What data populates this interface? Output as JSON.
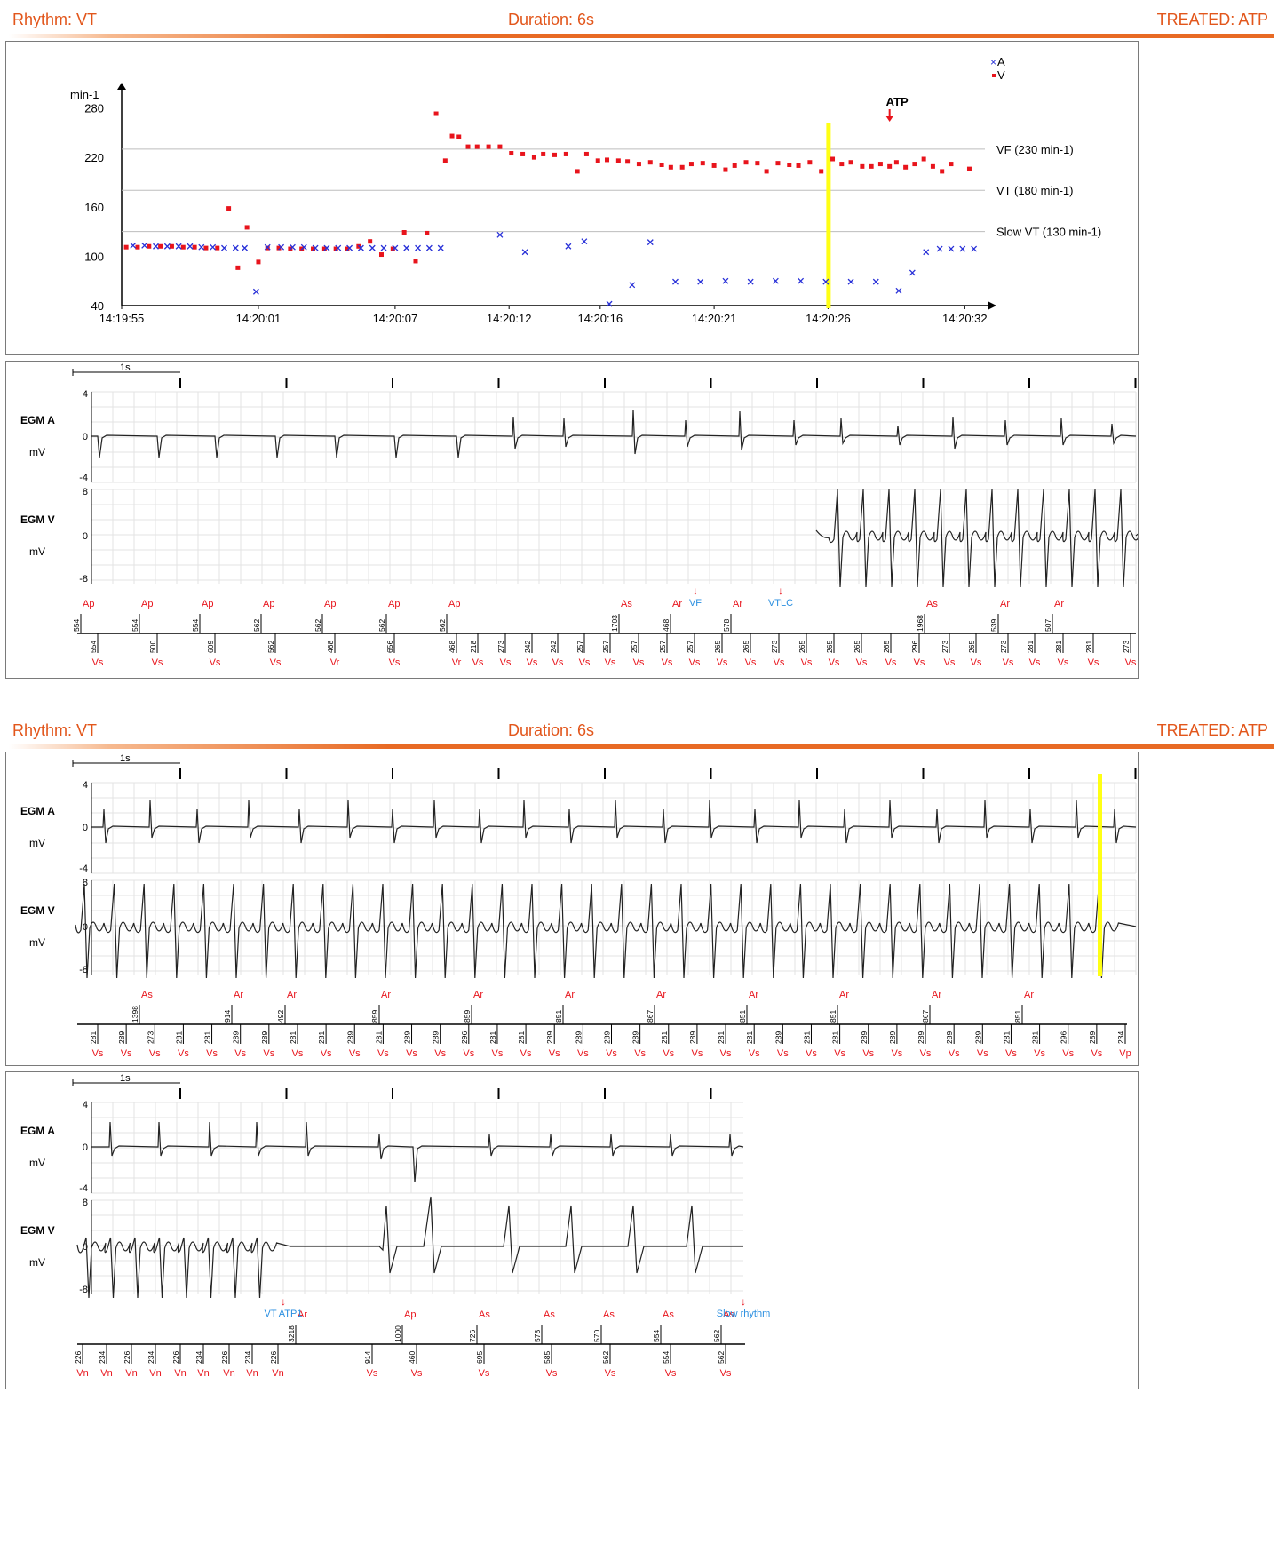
{
  "headers": [
    {
      "rhythm": "Rhythm: VT",
      "duration": "Duration: 6s",
      "treated": "TREATED: ATP"
    },
    {
      "rhythm": "Rhythm: VT",
      "duration": "Duration: 6s",
      "treated": "TREATED: ATP"
    }
  ],
  "colors": {
    "header": "#e2561b",
    "v_marker": "#e8141c",
    "a_marker": "#2830d8",
    "yellow": "#ffff14",
    "annotation": "#2b8fe0"
  },
  "chart_data": [
    {
      "type": "scatter",
      "title": "",
      "ylabel": "min-1",
      "ylim": [
        40,
        300
      ],
      "yticks": [
        40,
        100,
        160,
        220,
        280
      ],
      "xlim": [
        "14:19:55",
        "14:20:33"
      ],
      "xticks": [
        "14:19:55",
        "14:20:01",
        "14:20:07",
        "14:20:12",
        "14:20:16",
        "14:20:21",
        "14:20:26",
        "14:20:32"
      ],
      "legend": {
        "position": "top-right",
        "entries": [
          "A",
          "V"
        ]
      },
      "thresholds": [
        {
          "label": "VF (230 min-1)",
          "value": 230
        },
        {
          "label": "VT (180 min-1)",
          "value": 180
        },
        {
          "label": "Slow VT (130 min-1)",
          "value": 130
        }
      ],
      "marker_annotation": {
        "label": "ATP",
        "time": "14:20:28.7"
      },
      "highlight_time": "14:20:26",
      "series": [
        {
          "name": "A",
          "marker": "x",
          "x": [
            "14:19:55.5",
            "14:19:56.0",
            "14:19:56.5",
            "14:19:57.0",
            "14:19:57.5",
            "14:19:58.0",
            "14:19:58.5",
            "14:19:59.0",
            "14:19:59.5",
            "14:20:00.0",
            "14:20:00.4",
            "14:20:00.9",
            "14:20:01.4",
            "14:20:02.0",
            "14:20:02.5",
            "14:20:03.0",
            "14:20:03.5",
            "14:20:04.0",
            "14:20:04.5",
            "14:20:05.0",
            "14:20:05.5",
            "14:20:06.0",
            "14:20:06.5",
            "14:20:07.0",
            "14:20:07.5",
            "14:20:08.0",
            "14:20:08.5",
            "14:20:09.0",
            "14:20:11.6",
            "14:20:12.7",
            "14:20:14.6",
            "14:20:15.3",
            "14:20:16.4",
            "14:20:17.4",
            "14:20:18.2",
            "14:20:19.3",
            "14:20:20.4",
            "14:20:21.5",
            "14:20:22.6",
            "14:20:23.7",
            "14:20:24.8",
            "14:20:25.9",
            "14:20:27.0",
            "14:20:28.1",
            "14:20:29.1",
            "14:20:29.7",
            "14:20:30.3",
            "14:20:30.9",
            "14:20:31.4",
            "14:20:31.9",
            "14:20:32.4"
          ],
          "y": [
            113,
            113,
            112,
            112,
            112,
            112,
            111,
            111,
            110,
            110,
            110,
            57,
            111,
            111,
            111,
            111,
            110,
            110,
            110,
            110,
            110,
            110,
            110,
            110,
            110,
            110,
            110,
            110,
            126,
            105,
            112,
            118,
            42,
            65,
            117,
            69,
            69,
            70,
            69,
            70,
            70,
            69,
            69,
            69,
            58,
            80,
            105,
            109,
            109,
            109,
            109
          ]
        },
        {
          "name": "V",
          "marker": "square",
          "x": [
            "14:19:55.2",
            "14:19:55.7",
            "14:19:56.2",
            "14:19:56.7",
            "14:19:57.2",
            "14:19:57.7",
            "14:19:58.2",
            "14:19:58.7",
            "14:19:59.2",
            "14:19:59.7",
            "14:20:00.1",
            "14:20:00.5",
            "14:20:01.0",
            "14:20:01.4",
            "14:20:01.9",
            "14:20:02.4",
            "14:20:02.9",
            "14:20:03.4",
            "14:20:03.9",
            "14:20:04.4",
            "14:20:04.9",
            "14:20:05.4",
            "14:20:05.9",
            "14:20:06.4",
            "14:20:06.9",
            "14:20:07.4",
            "14:20:07.9",
            "14:20:08.4",
            "14:20:08.8",
            "14:20:09.2",
            "14:20:09.5",
            "14:20:09.8",
            "14:20:10.2",
            "14:20:10.6",
            "14:20:11.1",
            "14:20:11.6",
            "14:20:12.1",
            "14:20:12.6",
            "14:20:13.1",
            "14:20:13.5",
            "14:20:14.0",
            "14:20:14.5",
            "14:20:15.0",
            "14:20:15.4",
            "14:20:15.9",
            "14:20:16.3",
            "14:20:16.8",
            "14:20:17.2",
            "14:20:17.7",
            "14:20:18.2",
            "14:20:18.7",
            "14:20:19.1",
            "14:20:19.6",
            "14:20:20.0",
            "14:20:20.5",
            "14:20:21.0",
            "14:20:21.5",
            "14:20:21.9",
            "14:20:22.4",
            "14:20:22.9",
            "14:20:23.3",
            "14:20:23.8",
            "14:20:24.3",
            "14:20:24.7",
            "14:20:25.2",
            "14:20:25.7",
            "14:20:26.2",
            "14:20:26.6",
            "14:20:27.0",
            "14:20:27.5",
            "14:20:27.9",
            "14:20:28.3",
            "14:20:28.7",
            "14:20:29.0",
            "14:20:29.4",
            "14:20:29.8",
            "14:20:30.2",
            "14:20:30.6",
            "14:20:31.0",
            "14:20:31.4",
            "14:20:32.2"
          ],
          "y": [
            111,
            111,
            112,
            112,
            112,
            111,
            111,
            110,
            110,
            158,
            86,
            135,
            93,
            110,
            110,
            109,
            109,
            109,
            109,
            109,
            109,
            112,
            118,
            102,
            109,
            129,
            94,
            128,
            273,
            216,
            246,
            245,
            233,
            233,
            233,
            233,
            225,
            224,
            220,
            224,
            223,
            224,
            203,
            224,
            216,
            217,
            216,
            215,
            212,
            214,
            211,
            208,
            208,
            212,
            213,
            210,
            205,
            210,
            214,
            213,
            203,
            213,
            211,
            210,
            214,
            203,
            218,
            212,
            214,
            209,
            209,
            212,
            209,
            214,
            208,
            212,
            218,
            209,
            203,
            212,
            206
          ]
        }
      ]
    },
    {
      "type": "line",
      "title": "",
      "scale_label": "1s",
      "tracks": [
        {
          "name": "EGM A",
          "unit": "mV",
          "ticks": [
            "4",
            "0",
            "-4"
          ],
          "ylim": [
            -5,
            5
          ]
        },
        {
          "name": "EGM V",
          "unit": "mV",
          "ticks": [
            "8",
            "0",
            "-8"
          ],
          "ylim": [
            -9,
            9
          ]
        }
      ],
      "annotations": [
        {
          "label": "VF"
        },
        {
          "label": "VTLC"
        }
      ],
      "upper_markers": [
        {
          "label": "Ap",
          "interval": "554"
        },
        {
          "label": "Ap",
          "interval": "554"
        },
        {
          "label": "Ap",
          "interval": "554"
        },
        {
          "label": "Ap",
          "interval": "562"
        },
        {
          "label": "Ap",
          "interval": "562"
        },
        {
          "label": "Ap",
          "interval": "562"
        },
        {
          "label": "Ap",
          "interval": "562"
        },
        {
          "label": "As",
          "interval": "1703"
        },
        {
          "label": "Ar",
          "interval": "468"
        },
        {
          "label": "Ar",
          "interval": "578"
        },
        {
          "label": "As",
          "interval": "1968"
        },
        {
          "label": "Ar",
          "interval": "539"
        },
        {
          "label": "Ar",
          "interval": "507"
        }
      ],
      "lower_markers": [
        {
          "label": "Vs",
          "interval": "554"
        },
        {
          "label": "Vs",
          "interval": "500"
        },
        {
          "label": "Vs",
          "interval": "609"
        },
        {
          "label": "Vs",
          "interval": "562"
        },
        {
          "label": "Vr",
          "interval": "468"
        },
        {
          "label": "Vs",
          "interval": "656"
        },
        {
          "label": "Vr",
          "interval": "468"
        },
        {
          "label": "Vs",
          "interval": "218"
        },
        {
          "label": "Vs",
          "interval": "273"
        },
        {
          "label": "Vs",
          "interval": "242"
        },
        {
          "label": "Vs",
          "interval": "242"
        },
        {
          "label": "Vs",
          "interval": "257"
        },
        {
          "label": "Vs",
          "interval": "257"
        },
        {
          "label": "Vs",
          "interval": "257"
        },
        {
          "label": "Vs",
          "interval": "257"
        },
        {
          "label": "Vs",
          "interval": "257"
        },
        {
          "label": "Vs",
          "interval": "265"
        },
        {
          "label": "Vs",
          "interval": "265"
        },
        {
          "label": "Vs",
          "interval": "273"
        },
        {
          "label": "Vs",
          "interval": "265"
        },
        {
          "label": "Vs",
          "interval": "265"
        },
        {
          "label": "Vs",
          "interval": "265"
        },
        {
          "label": "Vs",
          "interval": "265"
        },
        {
          "label": "Vs",
          "interval": "296"
        },
        {
          "label": "Vs",
          "interval": "273"
        },
        {
          "label": "Vs",
          "interval": "265"
        },
        {
          "label": "Vs",
          "interval": "273"
        },
        {
          "label": "Vs",
          "interval": "281"
        },
        {
          "label": "Vs",
          "interval": "281"
        },
        {
          "label": "Vs",
          "interval": "281"
        },
        {
          "label": "Vs",
          "interval": "273"
        }
      ]
    },
    {
      "type": "line",
      "title": "",
      "scale_label": "1s",
      "tracks": [
        {
          "name": "EGM A",
          "unit": "mV",
          "ticks": [
            "4",
            "0",
            "-4"
          ],
          "ylim": [
            -5,
            5
          ]
        },
        {
          "name": "EGM V",
          "unit": "mV",
          "ticks": [
            "8",
            "0",
            "-8"
          ],
          "ylim": [
            -9,
            9
          ]
        }
      ],
      "upper_markers": [
        {
          "label": "As",
          "interval": "1398"
        },
        {
          "label": "Ar",
          "interval": "914"
        },
        {
          "label": "Ar",
          "interval": "492"
        },
        {
          "label": "Ar",
          "interval": "859"
        },
        {
          "label": "Ar",
          "interval": "859"
        },
        {
          "label": "Ar",
          "interval": "851"
        },
        {
          "label": "Ar",
          "interval": "867"
        },
        {
          "label": "Ar",
          "interval": "851"
        },
        {
          "label": "Ar",
          "interval": "851"
        },
        {
          "label": "Ar",
          "interval": "867"
        },
        {
          "label": "Ar",
          "interval": "851"
        }
      ],
      "lower_markers": [
        {
          "label": "Vs",
          "interval": "281"
        },
        {
          "label": "Vs",
          "interval": "289"
        },
        {
          "label": "Vs",
          "interval": "273"
        },
        {
          "label": "Vs",
          "interval": "281"
        },
        {
          "label": "Vs",
          "interval": "281"
        },
        {
          "label": "Vs",
          "interval": "289"
        },
        {
          "label": "Vs",
          "interval": "289"
        },
        {
          "label": "Vs",
          "interval": "281"
        },
        {
          "label": "Vs",
          "interval": "281"
        },
        {
          "label": "Vs",
          "interval": "289"
        },
        {
          "label": "Vs",
          "interval": "281"
        },
        {
          "label": "Vs",
          "interval": "289"
        },
        {
          "label": "Vs",
          "interval": "289"
        },
        {
          "label": "Vs",
          "interval": "296"
        },
        {
          "label": "Vs",
          "interval": "281"
        },
        {
          "label": "Vs",
          "interval": "281"
        },
        {
          "label": "Vs",
          "interval": "289"
        },
        {
          "label": "Vs",
          "interval": "289"
        },
        {
          "label": "Vs",
          "interval": "289"
        },
        {
          "label": "Vs",
          "interval": "289"
        },
        {
          "label": "Vs",
          "interval": "281"
        },
        {
          "label": "Vs",
          "interval": "289"
        },
        {
          "label": "Vs",
          "interval": "281"
        },
        {
          "label": "Vs",
          "interval": "281"
        },
        {
          "label": "Vs",
          "interval": "289"
        },
        {
          "label": "Vs",
          "interval": "281"
        },
        {
          "label": "Vs",
          "interval": "281"
        },
        {
          "label": "Vs",
          "interval": "289"
        },
        {
          "label": "Vs",
          "interval": "289"
        },
        {
          "label": "Vs",
          "interval": "289"
        },
        {
          "label": "Vs",
          "interval": "289"
        },
        {
          "label": "Vs",
          "interval": "289"
        },
        {
          "label": "Vs",
          "interval": "281"
        },
        {
          "label": "Vs",
          "interval": "281"
        },
        {
          "label": "Vs",
          "interval": "296"
        },
        {
          "label": "Vs",
          "interval": "289"
        },
        {
          "label": "Vp",
          "interval": "234"
        }
      ]
    },
    {
      "type": "line",
      "title": "",
      "scale_label": "1s",
      "tracks": [
        {
          "name": "EGM A",
          "unit": "mV",
          "ticks": [
            "4",
            "0",
            "-4"
          ],
          "ylim": [
            -5,
            5
          ]
        },
        {
          "name": "EGM V",
          "unit": "mV",
          "ticks": [
            "8",
            "0",
            "-8"
          ],
          "ylim": [
            -9,
            9
          ]
        }
      ],
      "annotations": [
        {
          "label": "VT ATP1"
        },
        {
          "label": "Slow rhythm"
        }
      ],
      "upper_markers": [
        {
          "label": "Ar",
          "interval": "3218"
        },
        {
          "label": "Ap",
          "interval": "1000"
        },
        {
          "label": "As",
          "interval": "726"
        },
        {
          "label": "As",
          "interval": "578"
        },
        {
          "label": "As",
          "interval": "570"
        },
        {
          "label": "As",
          "interval": "554"
        },
        {
          "label": "As",
          "interval": "562"
        }
      ],
      "lower_markers": [
        {
          "label": "Vn",
          "interval": "226"
        },
        {
          "label": "Vn",
          "interval": "234"
        },
        {
          "label": "Vn",
          "interval": "226"
        },
        {
          "label": "Vn",
          "interval": "234"
        },
        {
          "label": "Vn",
          "interval": "226"
        },
        {
          "label": "Vn",
          "interval": "234"
        },
        {
          "label": "Vn",
          "interval": "226"
        },
        {
          "label": "Vn",
          "interval": "234"
        },
        {
          "label": "Vn",
          "interval": "226"
        },
        {
          "label": "Vs",
          "interval": "914"
        },
        {
          "label": "Vs",
          "interval": "460"
        },
        {
          "label": "Vs",
          "interval": "695"
        },
        {
          "label": "Vs",
          "interval": "585"
        },
        {
          "label": "Vs",
          "interval": "562"
        },
        {
          "label": "Vs",
          "interval": "554"
        },
        {
          "label": "Vs",
          "interval": "562"
        }
      ]
    }
  ]
}
